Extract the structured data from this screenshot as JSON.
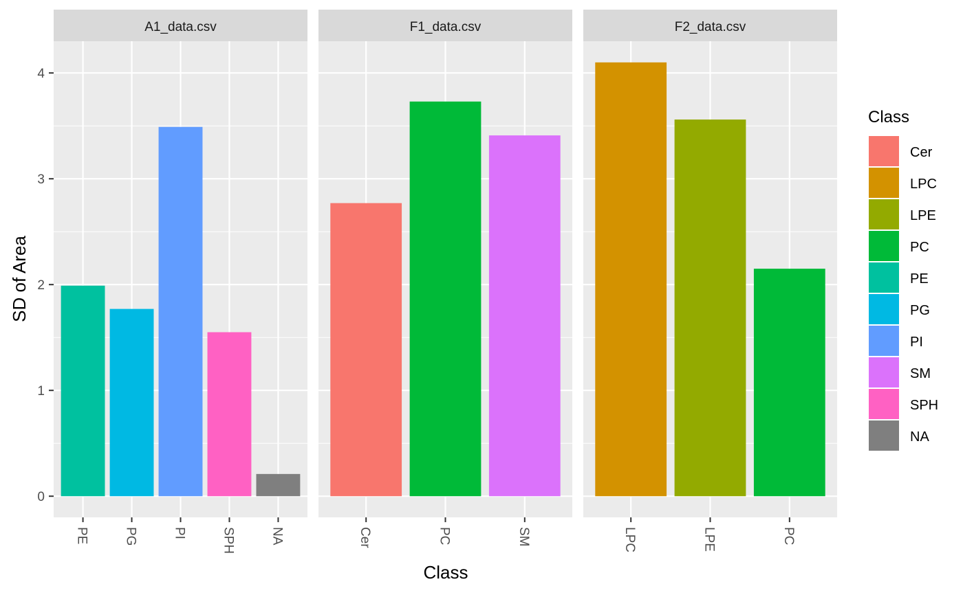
{
  "chart_data": {
    "type": "bar",
    "ylabel": "SD of Area",
    "xlabel": "Class",
    "ylim": [
      -0.2,
      4.3
    ],
    "yticks": [
      0,
      1,
      2,
      3,
      4
    ],
    "grid": true,
    "legend_position": "right",
    "legend": {
      "title": "Class",
      "entries": [
        {
          "label": "Cer",
          "color": "#F8766D"
        },
        {
          "label": "LPC",
          "color": "#D39200"
        },
        {
          "label": "LPE",
          "color": "#93AA00"
        },
        {
          "label": "PC",
          "color": "#00BA38"
        },
        {
          "label": "PE",
          "color": "#00C19F"
        },
        {
          "label": "PG",
          "color": "#00B9E3"
        },
        {
          "label": "PI",
          "color": "#619CFF"
        },
        {
          "label": "SM",
          "color": "#DB72FB"
        },
        {
          "label": "SPH",
          "color": "#FF61C3"
        },
        {
          "label": "NA",
          "color": "#7F7F7F"
        }
      ]
    },
    "panels": [
      {
        "title": "A1_data.csv",
        "categories": [
          "PE",
          "PG",
          "PI",
          "SPH",
          "NA"
        ],
        "values": [
          1.99,
          1.77,
          3.49,
          1.55,
          0.21
        ]
      },
      {
        "title": "F1_data.csv",
        "categories": [
          "Cer",
          "PC",
          "SM"
        ],
        "values": [
          2.77,
          3.73,
          3.41
        ]
      },
      {
        "title": "F2_data.csv",
        "categories": [
          "LPC",
          "LPE",
          "PC"
        ],
        "values": [
          4.1,
          3.56,
          2.15
        ]
      }
    ]
  }
}
